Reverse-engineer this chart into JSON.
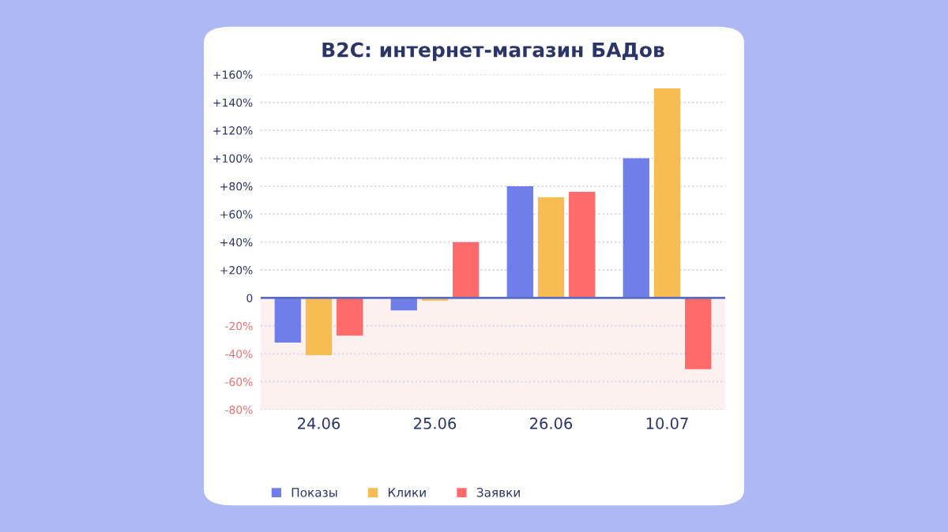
{
  "chart_data": {
    "type": "bar",
    "title": "B2C: интернет-магазин БАДов",
    "categories": [
      "24.06",
      "25.06",
      "26.06",
      "10.07"
    ],
    "series": [
      {
        "name": "Показы",
        "color": "#6f7ee8",
        "values": [
          -32,
          -9,
          80,
          100
        ]
      },
      {
        "name": "Клики",
        "color": "#f7bc52",
        "values": [
          -41,
          -2,
          72,
          150
        ]
      },
      {
        "name": "Заявки",
        "color": "#ff6b6b",
        "values": [
          -27,
          40,
          76,
          -51
        ]
      }
    ],
    "ylim": [
      -80,
      160
    ],
    "yticks": [
      {
        "value": -80,
        "label": "-80%"
      },
      {
        "value": -60,
        "label": "-60%"
      },
      {
        "value": -40,
        "label": "-40%"
      },
      {
        "value": -20,
        "label": "-20%"
      },
      0,
      {
        "value": 20,
        "label": "+20%"
      },
      {
        "value": 40,
        "label": "+40%"
      },
      {
        "value": 60,
        "label": "+60%"
      },
      {
        "value": 80,
        "label": "+80%"
      },
      {
        "value": 100,
        "label": "+100%"
      },
      {
        "value": 120,
        "label": "+120%"
      },
      {
        "value": 140,
        "label": "+140%"
      },
      {
        "value": 160,
        "label": "+160%"
      }
    ],
    "bands": [
      {
        "axis": "y",
        "from": -80,
        "to": 0,
        "color": "#fdf1ef"
      }
    ],
    "ref_lines": [
      {
        "axis": "y",
        "value": 0,
        "color": "#5c6bc0"
      }
    ],
    "grid": "y",
    "legend": "bottom left"
  }
}
